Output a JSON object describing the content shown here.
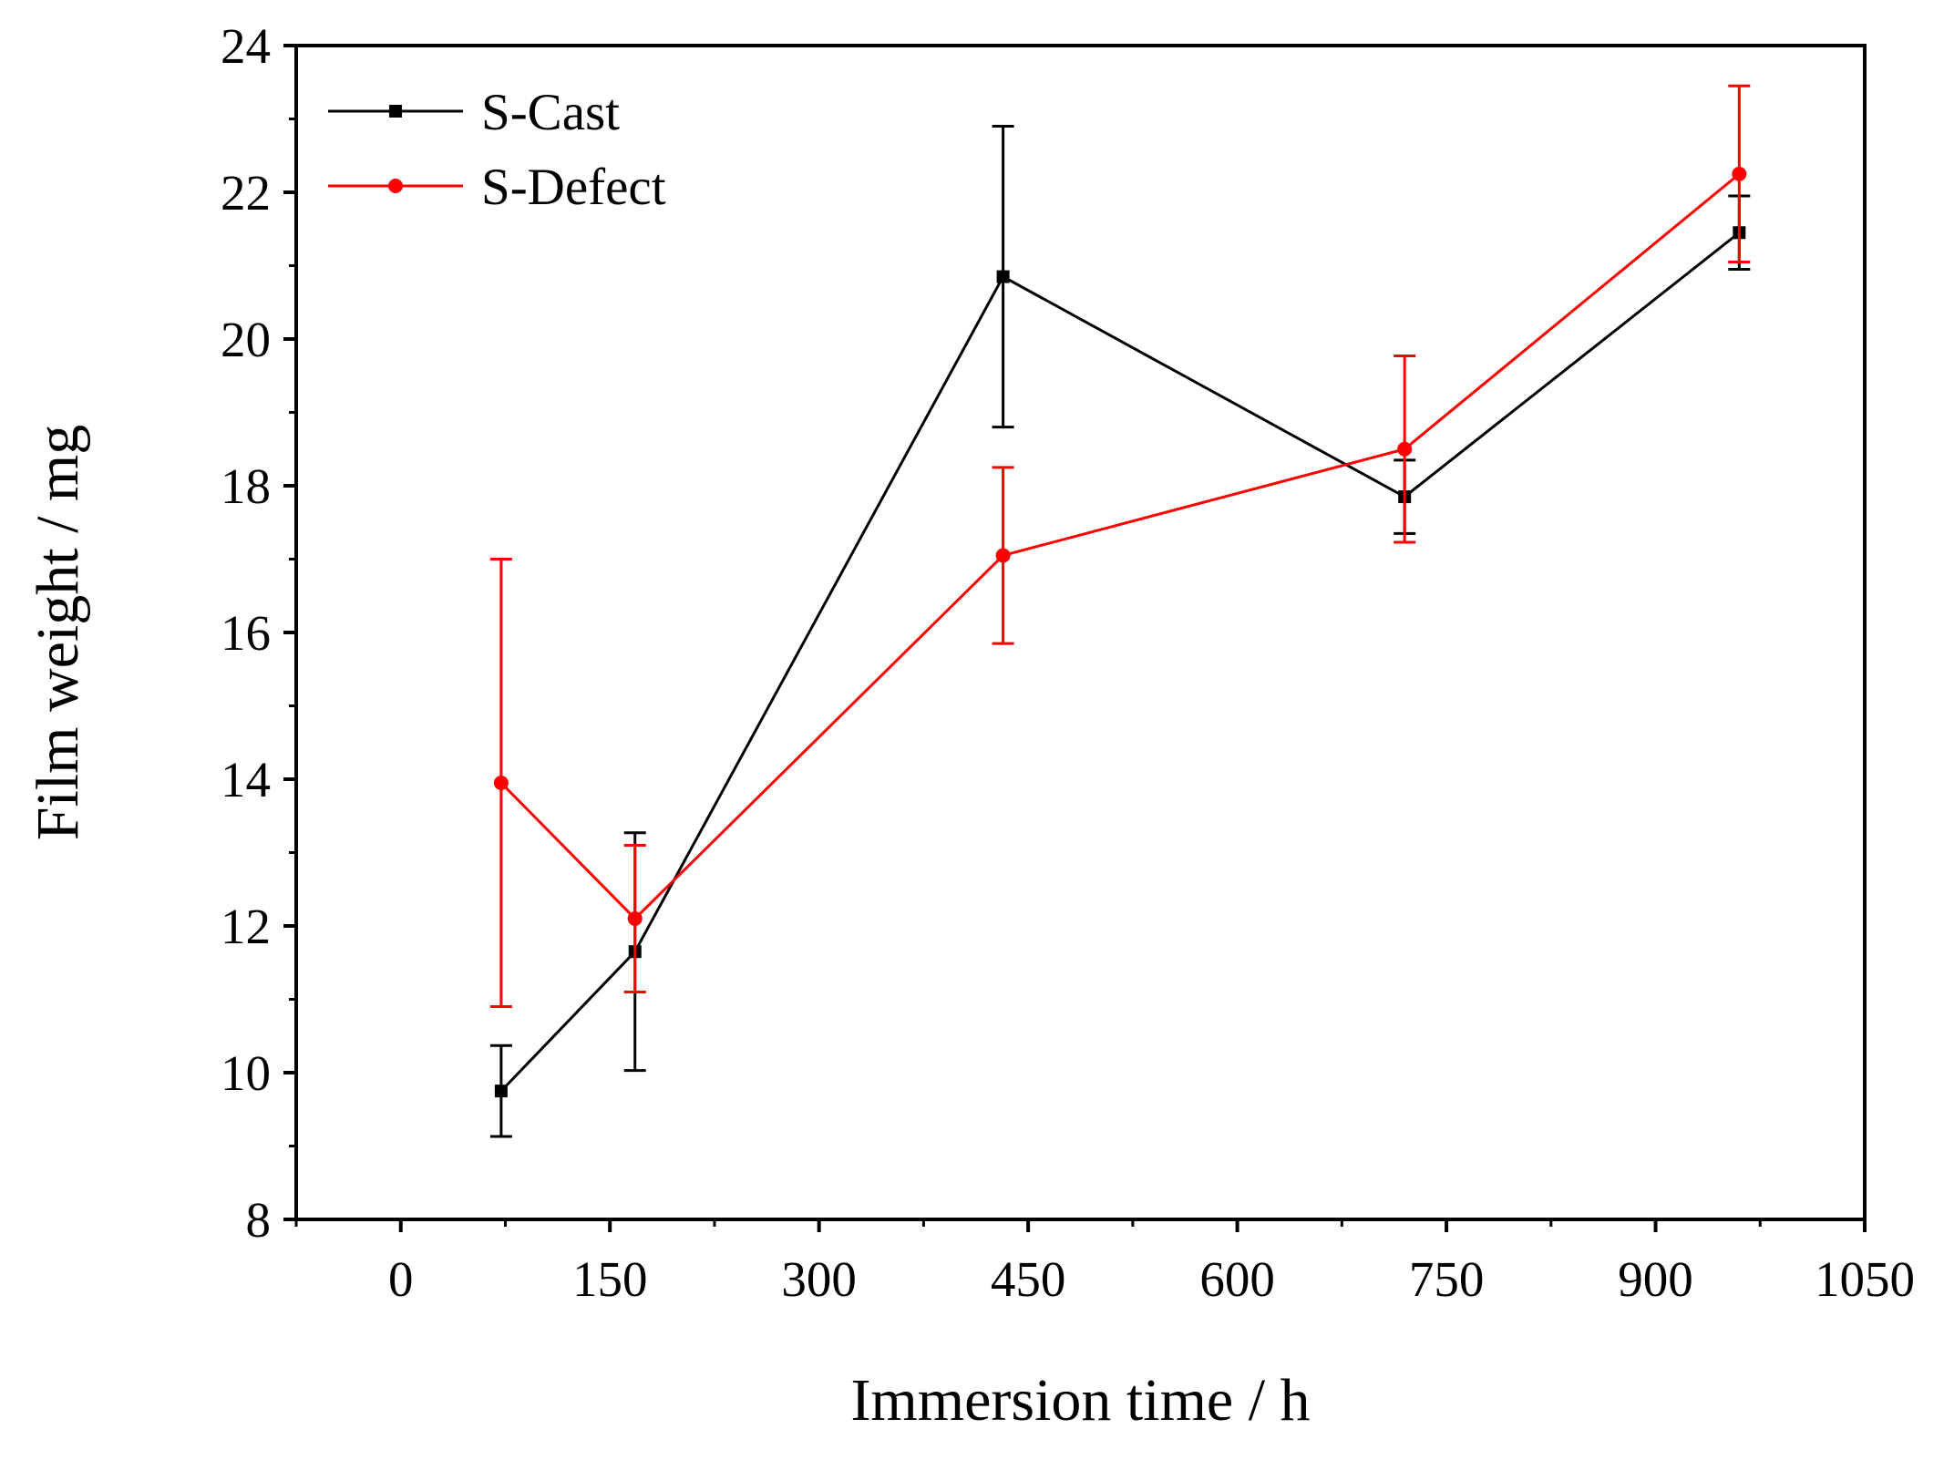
{
  "chart_data": {
    "type": "line",
    "title": "",
    "xlabel": "Immersion time / h",
    "ylabel": "Film weight / mg",
    "xlim": [
      -75,
      1050
    ],
    "ylim": [
      8,
      24
    ],
    "xticks": [
      0,
      150,
      300,
      450,
      600,
      750,
      900,
      1050
    ],
    "yticks": [
      8,
      10,
      12,
      14,
      16,
      18,
      20,
      22,
      24
    ],
    "xtick_labels": [
      "0",
      "150",
      "300",
      "450",
      "600",
      "750",
      "900",
      "1050"
    ],
    "ytick_labels": [
      "8",
      "10",
      "12",
      "14",
      "16",
      "18",
      "20",
      "22",
      "24"
    ],
    "legend_position": "top-left",
    "grid": false,
    "series": [
      {
        "name": "S-Cast",
        "color": "#000000",
        "marker": "square",
        "x": [
          72,
          168,
          432,
          720,
          960
        ],
        "y": [
          9.75,
          11.65,
          20.85,
          17.85,
          21.45
        ],
        "err": [
          0.62,
          1.62,
          2.05,
          0.5,
          0.5
        ]
      },
      {
        "name": "S-Defect",
        "color": "#ff0000",
        "marker": "circle",
        "x": [
          72,
          168,
          432,
          720,
          960
        ],
        "y": [
          13.95,
          12.1,
          17.05,
          18.5,
          22.25
        ],
        "err": [
          3.05,
          1.0,
          1.2,
          1.27,
          1.2
        ]
      }
    ]
  }
}
